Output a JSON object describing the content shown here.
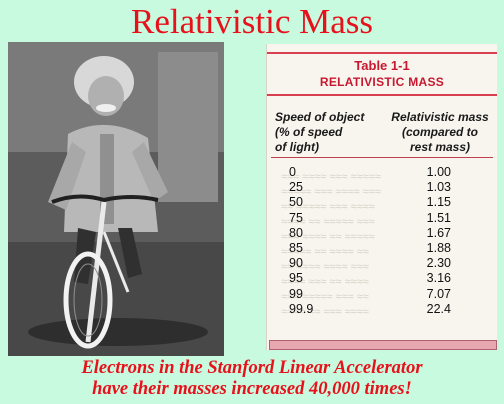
{
  "title": "Relativistic Mass",
  "table": {
    "number": "Table 1-1",
    "name": "RELATIVISTIC MASS",
    "col1_header": [
      "Speed of object",
      "(% of speed",
      "of light)"
    ],
    "col2_header": [
      "Relativistic mass",
      "(compared to",
      "rest mass)"
    ],
    "rows": [
      {
        "speed": "0",
        "mass": "1.00"
      },
      {
        "speed": "25",
        "mass": "1.03"
      },
      {
        "speed": "50",
        "mass": "1.15"
      },
      {
        "speed": "75",
        "mass": "1.51"
      },
      {
        "speed": "80",
        "mass": "1.67"
      },
      {
        "speed": "85",
        "mass": "1.88"
      },
      {
        "speed": "90",
        "mass": "2.30"
      },
      {
        "speed": "95",
        "mass": "3.16"
      },
      {
        "speed": "99",
        "mass": "7.07"
      },
      {
        "speed": "99.9",
        "mass": "22.4"
      }
    ]
  },
  "footer": {
    "line1": "Electrons in the Stanford Linear Accelerator",
    "line2": "have their masses increased 40,000 times!"
  },
  "colors": {
    "background": "#c8fae0",
    "title_red": "#e8101a",
    "table_red": "#c81830"
  }
}
